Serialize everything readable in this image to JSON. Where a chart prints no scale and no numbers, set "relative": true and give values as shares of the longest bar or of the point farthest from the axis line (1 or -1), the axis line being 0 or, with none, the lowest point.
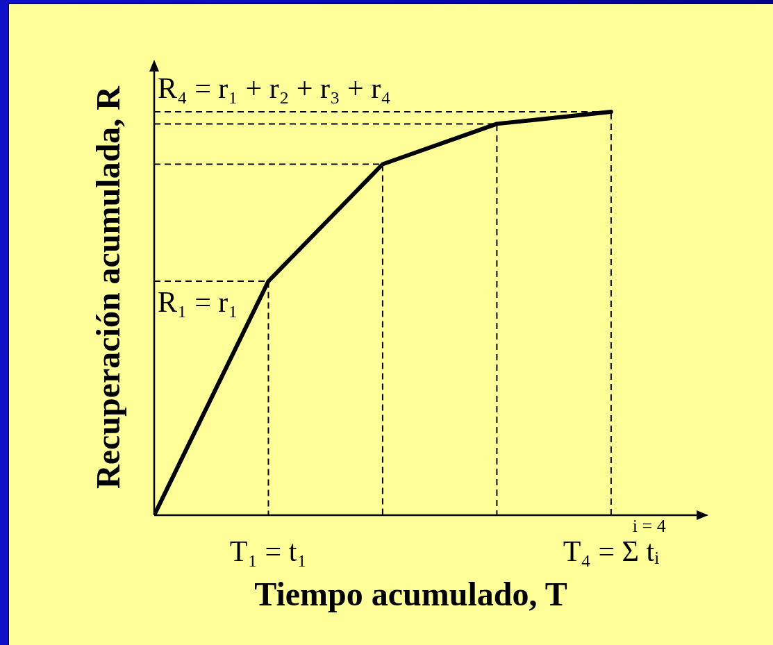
{
  "chart_data": {
    "type": "line",
    "xlabel": "Tiempo acumulado, T",
    "ylabel": "Recuperación acumulada, R",
    "relative": true,
    "categories": [
      null,
      "T₁ = t₁",
      null,
      null,
      "T₄ = Σ$^{i = 4}$ tᵢ"
    ],
    "series": [
      {
        "color": "#000000",
        "values": [
          0,
          0.58,
          0.87,
          0.97,
          1
        ]
      }
    ],
    "marker": "none",
    "line_style": "solid",
    "grid": false,
    "legend": false,
    "ref_lines": [
      {
        "axis": "y",
        "value": 0.58,
        "label": "R₁ = r₁",
        "line_style": "dashed",
        "color": "#000000"
      },
      {
        "axis": "y",
        "value": 0.87,
        "line_style": "dashed",
        "color": "#000000"
      },
      {
        "axis": "y",
        "value": 0.97,
        "line_style": "dashed",
        "color": "#000000"
      },
      {
        "axis": "y",
        "value": 1,
        "label": "R₄ = r₁ + r₂ + r₃ + r₄",
        "line_style": "dashed",
        "color": "#000000"
      }
    ]
  }
}
